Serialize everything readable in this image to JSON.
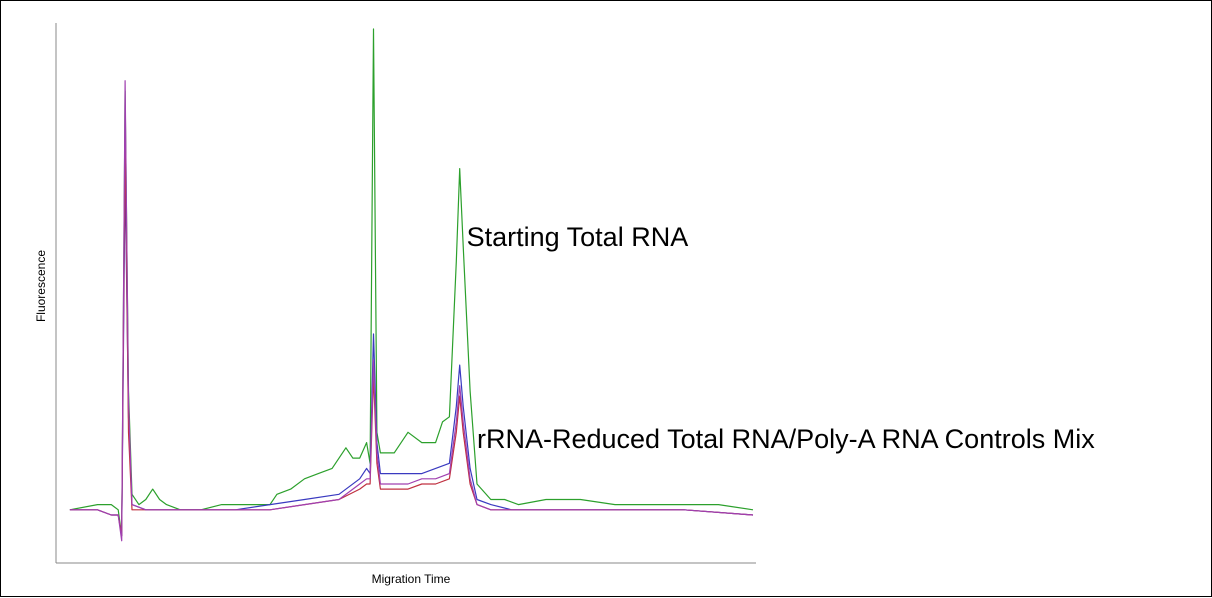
{
  "chart_data": {
    "type": "line",
    "title": "",
    "xlabel": "Migration Time",
    "ylabel": "Fluorescence",
    "xlim": [
      0,
      100
    ],
    "ylim": [
      0,
      100
    ],
    "grid": false,
    "legend": "none",
    "annotations": [
      {
        "text": "Starting Total RNA",
        "x": 58.5,
        "y": 58
      },
      {
        "text": "rRNA-Reduced Total RNA/Poly-A RNA Controls Mix",
        "x": 60,
        "y": 19
      }
    ],
    "series": [
      {
        "color": "#2ca02c",
        "points": [
          [
            1,
            7
          ],
          [
            5,
            8
          ],
          [
            7,
            8
          ],
          [
            8,
            7
          ],
          [
            8.5,
            2
          ],
          [
            9,
            88
          ],
          [
            9.5,
            30
          ],
          [
            10,
            10
          ],
          [
            11,
            8
          ],
          [
            12,
            9
          ],
          [
            13,
            11
          ],
          [
            14,
            9
          ],
          [
            15,
            8
          ],
          [
            17,
            7
          ],
          [
            20,
            7
          ],
          [
            23,
            8
          ],
          [
            26,
            8
          ],
          [
            30,
            8
          ],
          [
            31,
            10
          ],
          [
            33,
            11
          ],
          [
            35,
            13
          ],
          [
            37,
            14
          ],
          [
            39,
            15
          ],
          [
            41,
            19
          ],
          [
            42,
            17
          ],
          [
            43,
            17
          ],
          [
            44,
            20
          ],
          [
            44.5,
            16
          ],
          [
            45,
            100
          ],
          [
            45.5,
            22
          ],
          [
            46,
            18
          ],
          [
            48,
            18
          ],
          [
            50,
            22
          ],
          [
            52,
            20
          ],
          [
            54,
            20
          ],
          [
            55,
            24
          ],
          [
            56,
            25
          ],
          [
            57,
            55
          ],
          [
            57.5,
            73
          ],
          [
            58,
            58
          ],
          [
            59,
            30
          ],
          [
            60,
            12
          ],
          [
            62,
            9
          ],
          [
            64,
            9
          ],
          [
            66,
            8
          ],
          [
            70,
            9
          ],
          [
            75,
            9
          ],
          [
            80,
            8
          ],
          [
            85,
            8
          ],
          [
            90,
            8
          ],
          [
            95,
            8
          ],
          [
            100,
            7
          ]
        ]
      },
      {
        "color": "#3a3ac0",
        "points": [
          [
            1,
            7
          ],
          [
            5,
            7
          ],
          [
            7,
            6
          ],
          [
            8,
            6
          ],
          [
            8.5,
            2
          ],
          [
            9,
            72
          ],
          [
            9.5,
            25
          ],
          [
            10,
            8
          ],
          [
            12,
            7
          ],
          [
            14,
            7
          ],
          [
            17,
            7
          ],
          [
            20,
            7
          ],
          [
            25,
            7
          ],
          [
            30,
            8
          ],
          [
            35,
            9
          ],
          [
            40,
            10
          ],
          [
            43,
            13
          ],
          [
            44,
            15
          ],
          [
            44.5,
            14
          ],
          [
            45,
            41
          ],
          [
            45.5,
            20
          ],
          [
            46,
            14
          ],
          [
            48,
            14
          ],
          [
            50,
            14
          ],
          [
            52,
            14
          ],
          [
            54,
            15
          ],
          [
            56,
            16
          ],
          [
            57,
            27
          ],
          [
            57.5,
            35
          ],
          [
            58,
            27
          ],
          [
            59,
            15
          ],
          [
            60,
            9
          ],
          [
            62,
            8
          ],
          [
            65,
            7
          ],
          [
            70,
            7
          ],
          [
            80,
            7
          ],
          [
            90,
            7
          ],
          [
            100,
            6
          ]
        ]
      },
      {
        "color": "#c03040",
        "points": [
          [
            1,
            7
          ],
          [
            5,
            7
          ],
          [
            7,
            6
          ],
          [
            8,
            6
          ],
          [
            8.5,
            2
          ],
          [
            9,
            80
          ],
          [
            9.5,
            22
          ],
          [
            10,
            7
          ],
          [
            12,
            7
          ],
          [
            15,
            7
          ],
          [
            20,
            7
          ],
          [
            25,
            7
          ],
          [
            30,
            7
          ],
          [
            35,
            8
          ],
          [
            40,
            9
          ],
          [
            43,
            11
          ],
          [
            44,
            12
          ],
          [
            44.5,
            12
          ],
          [
            45,
            33
          ],
          [
            45.5,
            16
          ],
          [
            46,
            11
          ],
          [
            48,
            11
          ],
          [
            50,
            11
          ],
          [
            52,
            12
          ],
          [
            54,
            12
          ],
          [
            56,
            13
          ],
          [
            57,
            22
          ],
          [
            57.5,
            29
          ],
          [
            58,
            22
          ],
          [
            59,
            12
          ],
          [
            60,
            8
          ],
          [
            62,
            7
          ],
          [
            65,
            7
          ],
          [
            70,
            7
          ],
          [
            80,
            7
          ],
          [
            90,
            7
          ],
          [
            100,
            6
          ]
        ]
      },
      {
        "color": "#a040b0",
        "points": [
          [
            1,
            7
          ],
          [
            5,
            7
          ],
          [
            7,
            6
          ],
          [
            8,
            6
          ],
          [
            8.5,
            1
          ],
          [
            9,
            90
          ],
          [
            9.5,
            28
          ],
          [
            10,
            8
          ],
          [
            12,
            7
          ],
          [
            15,
            7
          ],
          [
            20,
            7
          ],
          [
            25,
            7
          ],
          [
            30,
            7
          ],
          [
            35,
            8
          ],
          [
            40,
            9
          ],
          [
            43,
            12
          ],
          [
            44,
            13
          ],
          [
            44.5,
            13
          ],
          [
            45,
            36
          ],
          [
            45.5,
            18
          ],
          [
            46,
            12
          ],
          [
            48,
            12
          ],
          [
            50,
            12
          ],
          [
            52,
            13
          ],
          [
            54,
            13
          ],
          [
            56,
            14
          ],
          [
            57,
            24
          ],
          [
            57.5,
            31
          ],
          [
            58,
            24
          ],
          [
            59,
            13
          ],
          [
            60,
            8
          ],
          [
            62,
            7
          ],
          [
            65,
            7
          ],
          [
            70,
            7
          ],
          [
            80,
            7
          ],
          [
            90,
            7
          ],
          [
            100,
            6
          ]
        ]
      }
    ]
  }
}
